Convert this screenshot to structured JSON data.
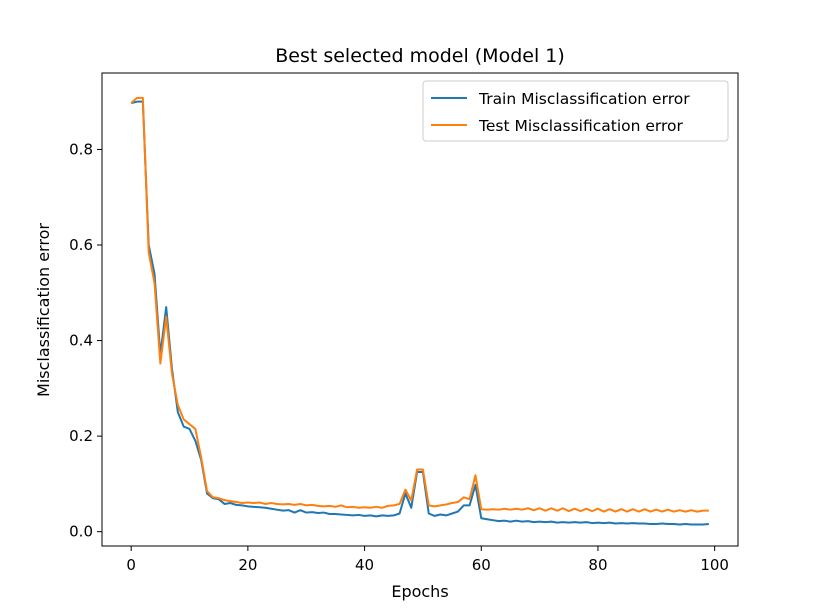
{
  "chart_data": {
    "type": "line",
    "title": "Best selected model (Model 1)",
    "xlabel": "Epochs",
    "ylabel": "Misclassification error",
    "xlim": [
      -5,
      104
    ],
    "ylim": [
      -0.03,
      0.96
    ],
    "xticks": [
      0,
      20,
      40,
      60,
      80,
      100
    ],
    "yticks": [
      0.0,
      0.2,
      0.4,
      0.6,
      0.8
    ],
    "grid": false,
    "legend_position": "top-right",
    "series": [
      {
        "name": "Train Misclassification error",
        "color": "#1f77b4",
        "x": [
          0,
          1,
          2,
          3,
          4,
          5,
          6,
          7,
          8,
          9,
          10,
          11,
          12,
          13,
          14,
          15,
          16,
          17,
          18,
          19,
          20,
          21,
          22,
          23,
          24,
          25,
          26,
          27,
          28,
          29,
          30,
          31,
          32,
          33,
          34,
          35,
          36,
          37,
          38,
          39,
          40,
          41,
          42,
          43,
          44,
          45,
          46,
          47,
          48,
          49,
          50,
          51,
          52,
          53,
          54,
          55,
          56,
          57,
          58,
          59,
          60,
          61,
          62,
          63,
          64,
          65,
          66,
          67,
          68,
          69,
          70,
          71,
          72,
          73,
          74,
          75,
          76,
          77,
          78,
          79,
          80,
          81,
          82,
          83,
          84,
          85,
          86,
          87,
          88,
          89,
          90,
          91,
          92,
          93,
          94,
          95,
          96,
          97,
          98,
          99
        ],
        "values": [
          0.897,
          0.9,
          0.9,
          0.6,
          0.54,
          0.37,
          0.47,
          0.34,
          0.25,
          0.22,
          0.215,
          0.19,
          0.15,
          0.08,
          0.07,
          0.068,
          0.058,
          0.06,
          0.056,
          0.055,
          0.053,
          0.052,
          0.051,
          0.05,
          0.048,
          0.046,
          0.044,
          0.045,
          0.04,
          0.045,
          0.04,
          0.041,
          0.039,
          0.04,
          0.037,
          0.037,
          0.036,
          0.035,
          0.034,
          0.035,
          0.033,
          0.034,
          0.032,
          0.034,
          0.033,
          0.034,
          0.038,
          0.08,
          0.05,
          0.125,
          0.125,
          0.038,
          0.033,
          0.036,
          0.034,
          0.038,
          0.042,
          0.055,
          0.055,
          0.098,
          0.028,
          0.026,
          0.024,
          0.022,
          0.023,
          0.021,
          0.023,
          0.021,
          0.022,
          0.02,
          0.021,
          0.02,
          0.021,
          0.019,
          0.02,
          0.019,
          0.02,
          0.019,
          0.02,
          0.018,
          0.019,
          0.018,
          0.019,
          0.017,
          0.018,
          0.017,
          0.018,
          0.017,
          0.017,
          0.016,
          0.016,
          0.017,
          0.016,
          0.016,
          0.015,
          0.016,
          0.015,
          0.015,
          0.015,
          0.016
        ],
        "x_offset": 0
      },
      {
        "name": "Test Misclassification error",
        "color": "#ff7f0e",
        "x": [
          0,
          1,
          2,
          3,
          4,
          5,
          6,
          7,
          8,
          9,
          10,
          11,
          12,
          13,
          14,
          15,
          16,
          17,
          18,
          19,
          20,
          21,
          22,
          23,
          24,
          25,
          26,
          27,
          28,
          29,
          30,
          31,
          32,
          33,
          34,
          35,
          36,
          37,
          38,
          39,
          40,
          41,
          42,
          43,
          44,
          45,
          46,
          47,
          48,
          49,
          50,
          51,
          52,
          53,
          54,
          55,
          56,
          57,
          58,
          59,
          60,
          61,
          62,
          63,
          64,
          65,
          66,
          67,
          68,
          69,
          70,
          71,
          72,
          73,
          74,
          75,
          76,
          77,
          78,
          79,
          80,
          81,
          82,
          83,
          84,
          85,
          86,
          87,
          88,
          89,
          90,
          91,
          92,
          93,
          94,
          95,
          96,
          97,
          98,
          99
        ],
        "values": [
          0.897,
          0.908,
          0.908,
          0.585,
          0.52,
          0.352,
          0.45,
          0.33,
          0.265,
          0.235,
          0.225,
          0.215,
          0.155,
          0.085,
          0.072,
          0.07,
          0.066,
          0.064,
          0.062,
          0.06,
          0.061,
          0.06,
          0.061,
          0.058,
          0.06,
          0.058,
          0.057,
          0.058,
          0.056,
          0.058,
          0.055,
          0.056,
          0.054,
          0.053,
          0.054,
          0.052,
          0.055,
          0.051,
          0.052,
          0.05,
          0.051,
          0.05,
          0.052,
          0.05,
          0.054,
          0.055,
          0.058,
          0.088,
          0.065,
          0.13,
          0.13,
          0.055,
          0.053,
          0.055,
          0.057,
          0.06,
          0.062,
          0.072,
          0.068,
          0.118,
          0.047,
          0.046,
          0.047,
          0.046,
          0.048,
          0.046,
          0.048,
          0.046,
          0.049,
          0.045,
          0.049,
          0.044,
          0.049,
          0.044,
          0.049,
          0.043,
          0.048,
          0.043,
          0.048,
          0.043,
          0.048,
          0.042,
          0.047,
          0.042,
          0.047,
          0.042,
          0.047,
          0.042,
          0.047,
          0.042,
          0.046,
          0.042,
          0.046,
          0.042,
          0.045,
          0.042,
          0.045,
          0.042,
          0.044,
          0.044
        ]
      }
    ]
  }
}
